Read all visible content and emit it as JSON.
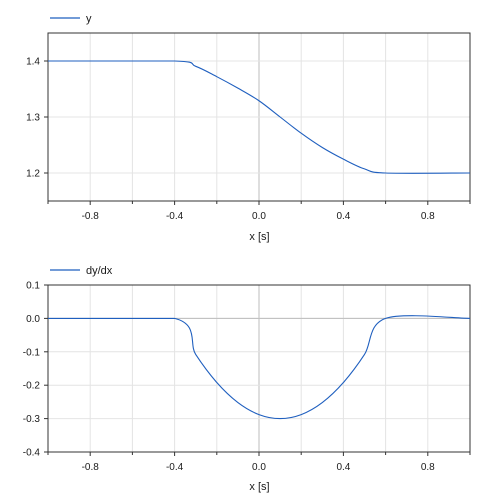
{
  "chart_data": [
    {
      "type": "line",
      "title": "",
      "xlabel": "x [s]",
      "ylabel": "",
      "xlim": [
        -1.0,
        1.0
      ],
      "ylim": [
        1.15,
        1.45
      ],
      "xticks": [
        -0.8,
        -0.4,
        0.0,
        0.4,
        0.8
      ],
      "xtick_labels": [
        "-0.8",
        "-0.4",
        "0.0",
        "0.4",
        "0.8"
      ],
      "yticks": [
        1.2,
        1.3,
        1.4
      ],
      "ytick_labels": [
        "1.2",
        "1.3",
        "1.4"
      ],
      "grid": true,
      "legend_position": "top-left",
      "series": [
        {
          "name": "y",
          "color": "#1f5fbf",
          "x": [
            -1.0,
            -0.4,
            -0.3,
            -0.2,
            -0.1,
            0.0,
            0.1,
            0.2,
            0.3,
            0.4,
            0.5,
            0.6,
            1.0
          ],
          "y": [
            1.4,
            1.4,
            1.3905,
            1.372,
            1.3515,
            1.329,
            1.3,
            1.271,
            1.2455,
            1.2247,
            1.2073,
            1.2,
            1.2
          ]
        }
      ]
    },
    {
      "type": "line",
      "title": "",
      "xlabel": "x [s]",
      "ylabel": "",
      "xlim": [
        -1.0,
        1.0
      ],
      "ylim": [
        -0.4,
        0.1
      ],
      "xticks": [
        -0.8,
        -0.4,
        0.0,
        0.4,
        0.8
      ],
      "xtick_labels": [
        "-0.8",
        "-0.4",
        "0.0",
        "0.4",
        "0.8"
      ],
      "yticks": [
        -0.4,
        -0.3,
        -0.2,
        -0.1,
        0.0,
        0.1
      ],
      "ytick_labels": [
        "-0.4",
        "-0.3",
        "-0.2",
        "-0.1",
        "0.0",
        "0.1"
      ],
      "grid": true,
      "legend_position": "top-left",
      "series": [
        {
          "name": "dy/dx",
          "color": "#1f5fbf",
          "x": [
            -1.0,
            -0.4,
            -0.3,
            -0.2,
            -0.1,
            0.0,
            0.1,
            0.2,
            0.3,
            0.4,
            0.5,
            0.6,
            1.0
          ],
          "y": [
            0.0,
            0.0,
            -0.108,
            -0.192,
            -0.252,
            -0.288,
            -0.3,
            -0.288,
            -0.252,
            -0.192,
            -0.108,
            0.0,
            0.0
          ]
        }
      ]
    }
  ]
}
